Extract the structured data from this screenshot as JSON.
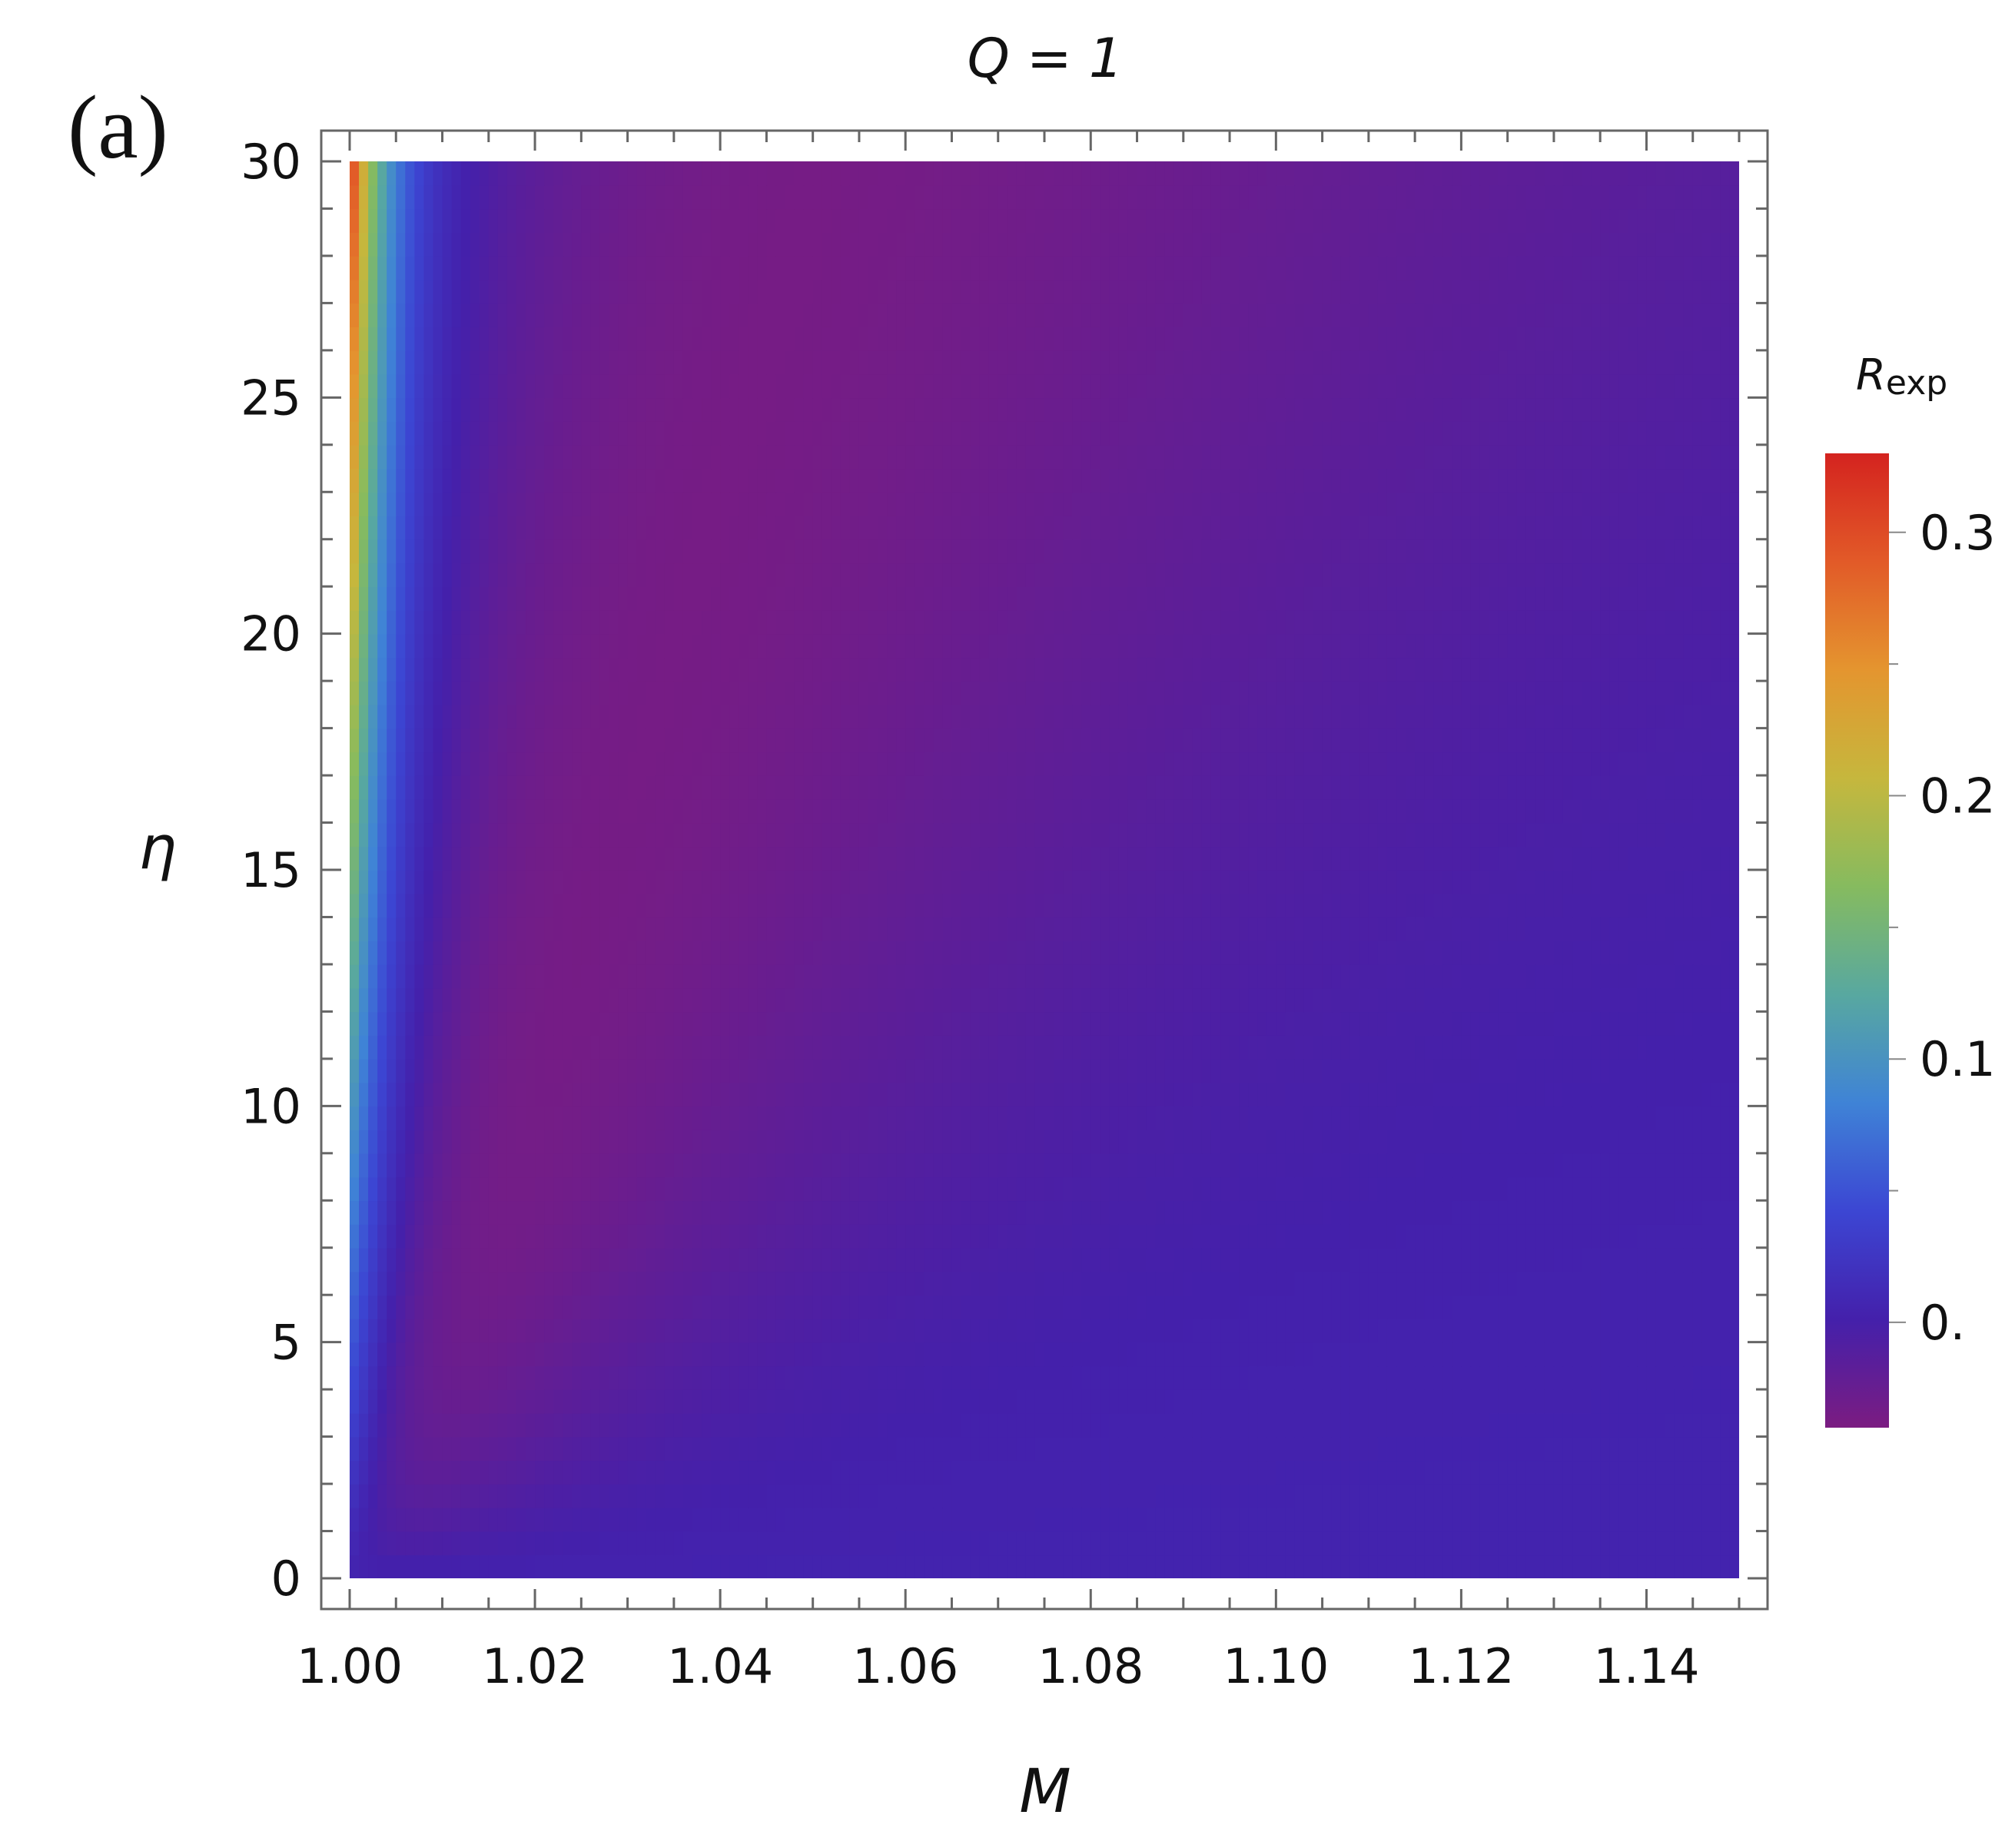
{
  "panel_label": "(a)",
  "chart_data": {
    "type": "heatmap",
    "title": "Q = 1",
    "xlabel": "M",
    "ylabel": "η",
    "xlim": [
      1.0,
      1.15
    ],
    "ylim": [
      0,
      30
    ],
    "x_ticks": [
      1.0,
      1.02,
      1.04,
      1.06,
      1.08,
      1.1,
      1.12,
      1.14
    ],
    "x_tick_labels": [
      "1.00",
      "1.02",
      "1.04",
      "1.06",
      "1.08",
      "1.10",
      "1.12",
      "1.14"
    ],
    "y_ticks": [
      0,
      5,
      10,
      15,
      20,
      25,
      30
    ],
    "y_tick_labels": [
      "0",
      "5",
      "10",
      "15",
      "20",
      "25",
      "30"
    ],
    "colorbar": {
      "label_main": "R",
      "label_sub": "exp",
      "range": [
        -0.04,
        0.33
      ],
      "ticks": [
        0.0,
        0.1,
        0.2,
        0.3
      ],
      "tick_labels": [
        "0.",
        "0.1",
        "0.2",
        "0.3"
      ],
      "colormap": [
        "#7b1c81",
        "#4420ab",
        "#3c46d3",
        "#3f83d6",
        "#58a8a0",
        "#86bb5f",
        "#c6b73d",
        "#e4952f",
        "#e25a28",
        "#d4231f"
      ]
    },
    "grid": false,
    "legend": "colorbar-right"
  }
}
